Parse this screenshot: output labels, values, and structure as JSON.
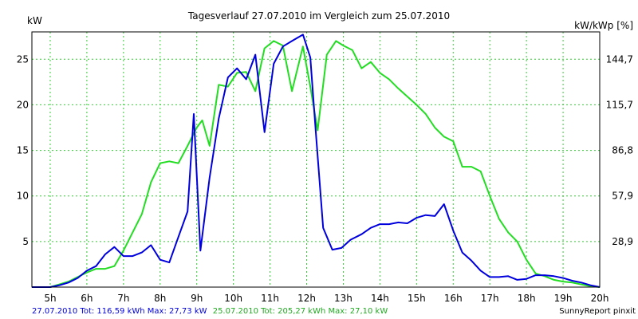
{
  "chart_data": {
    "type": "line",
    "title": "Tagesverlauf 27.07.2010 im Vergleich zum 25.07.2010",
    "ylabel_left": "kW",
    "ylabel_right": "kW/kWp [%]",
    "xlim": [
      4.5,
      20
    ],
    "ylim": [
      0,
      28
    ],
    "x_ticks": [
      {
        "x": 5,
        "label": "5h"
      },
      {
        "x": 6,
        "label": "6h"
      },
      {
        "x": 7,
        "label": "7h"
      },
      {
        "x": 8,
        "label": "8h"
      },
      {
        "x": 9,
        "label": "9h"
      },
      {
        "x": 10,
        "label": "10h"
      },
      {
        "x": 11,
        "label": "11h"
      },
      {
        "x": 12,
        "label": "12h"
      },
      {
        "x": 13,
        "label": "13h"
      },
      {
        "x": 14,
        "label": "14h"
      },
      {
        "x": 15,
        "label": "15h"
      },
      {
        "x": 16,
        "label": "16h"
      },
      {
        "x": 17,
        "label": "17h"
      },
      {
        "x": 18,
        "label": "18h"
      },
      {
        "x": 19,
        "label": "19h"
      },
      {
        "x": 20,
        "label": "20h"
      }
    ],
    "y_ticks_left": [
      {
        "y": 5,
        "label": "5"
      },
      {
        "y": 10,
        "label": "10"
      },
      {
        "y": 15,
        "label": "15"
      },
      {
        "y": 20,
        "label": "20"
      },
      {
        "y": 25,
        "label": "25"
      }
    ],
    "y_ticks_right": [
      {
        "y": 5,
        "label": "28,9"
      },
      {
        "y": 10,
        "label": "57,9"
      },
      {
        "y": 15,
        "label": "86,8"
      },
      {
        "y": 20,
        "label": "115,7"
      },
      {
        "y": 25,
        "label": "144,7"
      }
    ],
    "grid": true,
    "series": [
      {
        "name": "27.07.2010",
        "color": "#0000dd",
        "x": [
          4.5,
          4.75,
          5.0,
          5.25,
          5.5,
          5.75,
          6.0,
          6.25,
          6.5,
          6.75,
          7.0,
          7.25,
          7.5,
          7.75,
          8.0,
          8.25,
          8.5,
          8.75,
          8.92,
          9.1,
          9.35,
          9.6,
          9.85,
          10.1,
          10.35,
          10.6,
          10.85,
          11.1,
          11.35,
          11.6,
          11.9,
          12.1,
          12.25,
          12.45,
          12.7,
          12.95,
          13.2,
          13.5,
          13.75,
          14.0,
          14.25,
          14.5,
          14.75,
          15.0,
          15.25,
          15.5,
          15.75,
          16.0,
          16.25,
          16.5,
          16.75,
          17.0,
          17.25,
          17.5,
          17.75,
          18.0,
          18.25,
          18.5,
          18.75,
          19.0,
          19.25,
          19.5,
          19.75,
          20.0
        ],
        "y": [
          0,
          0,
          0,
          0.2,
          0.5,
          1.0,
          1.8,
          2.3,
          3.6,
          4.4,
          3.4,
          3.4,
          3.8,
          4.6,
          3.0,
          2.7,
          5.5,
          8.3,
          19.0,
          4.0,
          12.0,
          18.5,
          23.0,
          24.0,
          22.8,
          25.5,
          17.0,
          24.5,
          26.4,
          27.0,
          27.7,
          25.2,
          17.0,
          6.5,
          4.1,
          4.3,
          5.2,
          5.8,
          6.5,
          6.9,
          6.9,
          7.1,
          7.0,
          7.6,
          7.9,
          7.8,
          9.1,
          6.2,
          3.8,
          2.9,
          1.8,
          1.1,
          1.1,
          1.2,
          0.8,
          0.9,
          1.3,
          1.3,
          1.2,
          1.0,
          0.7,
          0.5,
          0.2,
          0
        ]
      },
      {
        "name": "25.07.2010",
        "color": "#22dd22",
        "x": [
          4.5,
          4.75,
          5.0,
          5.25,
          5.5,
          5.75,
          6.0,
          6.25,
          6.5,
          6.75,
          7.0,
          7.25,
          7.5,
          7.75,
          8.0,
          8.25,
          8.5,
          8.75,
          9.0,
          9.15,
          9.35,
          9.6,
          9.85,
          10.1,
          10.35,
          10.6,
          10.85,
          11.1,
          11.35,
          11.6,
          11.9,
          12.1,
          12.3,
          12.55,
          12.8,
          13.0,
          13.25,
          13.5,
          13.75,
          14.0,
          14.25,
          14.5,
          14.75,
          15.0,
          15.25,
          15.5,
          15.75,
          16.0,
          16.25,
          16.5,
          16.75,
          17.0,
          17.25,
          17.5,
          17.75,
          18.0,
          18.25,
          18.5,
          18.75,
          19.0,
          19.25,
          19.5,
          19.75,
          20.0
        ],
        "y": [
          0,
          0,
          0,
          0.3,
          0.6,
          1.1,
          1.6,
          2.0,
          2.0,
          2.3,
          4.0,
          6.0,
          8.0,
          11.5,
          13.6,
          13.8,
          13.6,
          15.5,
          17.5,
          18.3,
          15.5,
          22.2,
          22.0,
          23.5,
          23.6,
          21.5,
          26.2,
          27.0,
          26.5,
          21.5,
          26.4,
          22.0,
          17.2,
          25.5,
          27.0,
          26.5,
          26.0,
          24.0,
          24.7,
          23.5,
          22.8,
          21.8,
          20.9,
          20.0,
          19.0,
          17.5,
          16.5,
          16.0,
          13.2,
          13.2,
          12.7,
          10.0,
          7.5,
          6.0,
          5.0,
          3.0,
          1.5,
          1.2,
          0.8,
          0.6,
          0.5,
          0.3,
          0.1,
          0
        ]
      }
    ],
    "footer": {
      "blue_text": "27.07.2010 Tot: 116,59 kWh Max: 27,73 kW",
      "green_text": "25.07.2010 Tot: 205,27 kWh Max: 27,10 kW",
      "credit": "SunnyReport pinxit"
    }
  }
}
